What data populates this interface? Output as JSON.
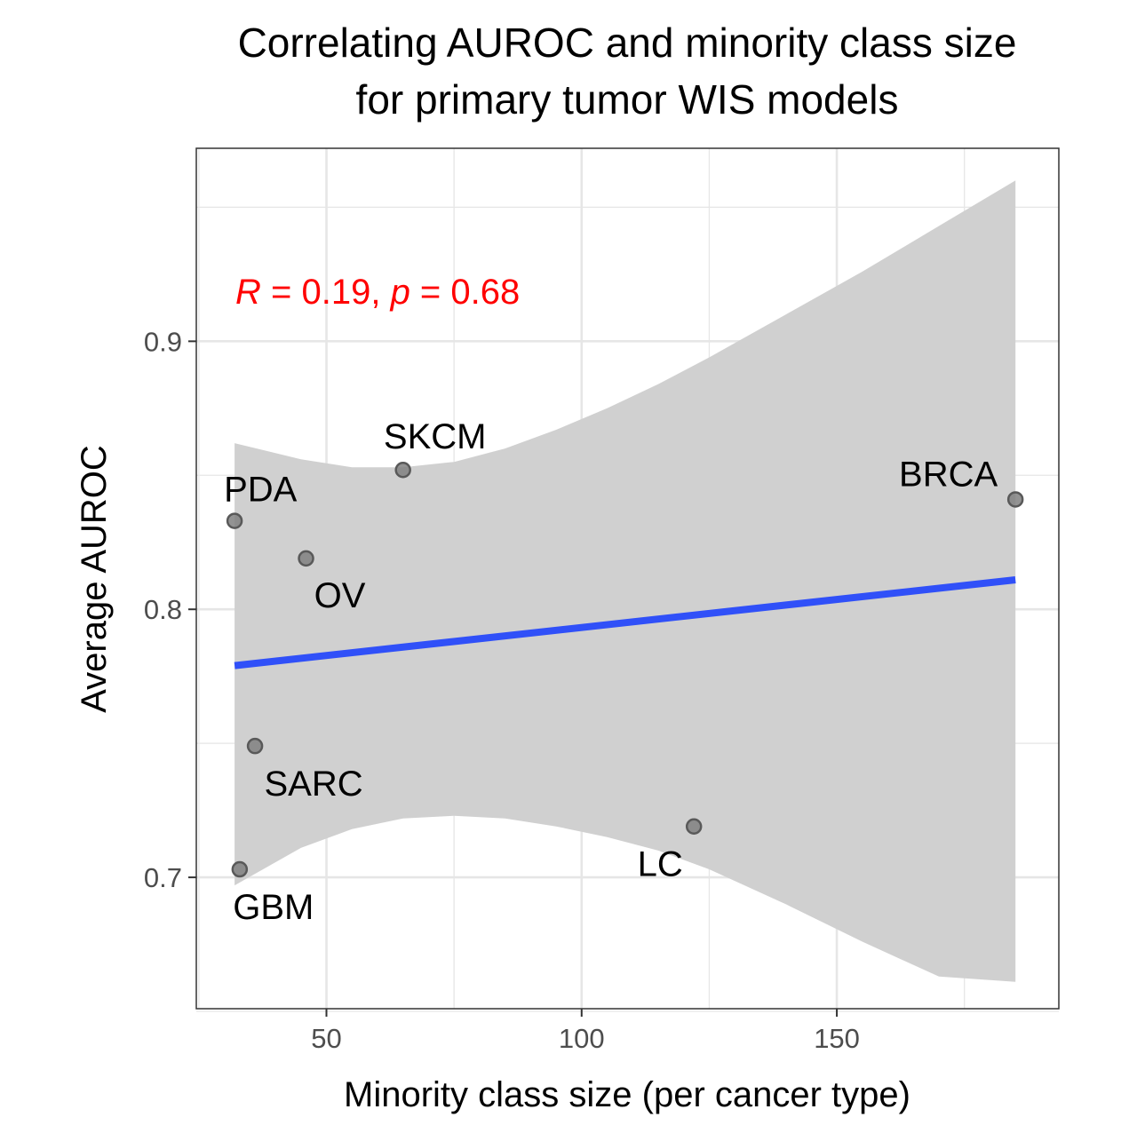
{
  "chart_data": {
    "type": "scatter",
    "title_lines": [
      "Correlating AUROC and minority class size",
      "for primary tumor WIS models"
    ],
    "xlabel": "Minority class size (per cancer type)",
    "ylabel": "Average AUROC",
    "xlim": [
      24.5,
      193.5
    ],
    "ylim": [
      0.651,
      0.972
    ],
    "x_ticks": [
      50,
      100,
      150
    ],
    "x_tick_labels": [
      "50",
      "100",
      "150"
    ],
    "x_minor_ticks": [
      25,
      75,
      125,
      175
    ],
    "y_ticks": [
      0.7,
      0.8,
      0.9
    ],
    "y_tick_labels": [
      "0.7",
      "0.8",
      "0.9"
    ],
    "y_minor_ticks": [
      0.65,
      0.75,
      0.85,
      0.95
    ],
    "grid": true,
    "points": [
      {
        "label": "PDA",
        "x": 32,
        "y": 0.833
      },
      {
        "label": "SKCM",
        "x": 65,
        "y": 0.852
      },
      {
        "label": "BRCA",
        "x": 185,
        "y": 0.841
      },
      {
        "label": "OV",
        "x": 46,
        "y": 0.819
      },
      {
        "label": "SARC",
        "x": 36,
        "y": 0.749
      },
      {
        "label": "LC",
        "x": 122,
        "y": 0.719
      },
      {
        "label": "GBM",
        "x": 33,
        "y": 0.703
      }
    ],
    "regression": {
      "x": [
        32,
        185
      ],
      "y": [
        0.779,
        0.811
      ],
      "ci_x": [
        32,
        45,
        55,
        65,
        75,
        85,
        95,
        105,
        115,
        125,
        140,
        155,
        170,
        185
      ],
      "ci_upper": [
        0.862,
        0.856,
        0.853,
        0.853,
        0.855,
        0.86,
        0.867,
        0.875,
        0.884,
        0.894,
        0.91,
        0.926,
        0.943,
        0.96
      ],
      "ci_lower": [
        0.697,
        0.711,
        0.718,
        0.722,
        0.723,
        0.722,
        0.719,
        0.715,
        0.71,
        0.703,
        0.69,
        0.676,
        0.663,
        0.661
      ]
    },
    "annotation": {
      "r_symbol": "R",
      "r_text": " = 0.19, ",
      "p_symbol": "p",
      "p_text": " = 0.68"
    },
    "colors": {
      "point_fill": "#808080",
      "point_stroke": "#595959",
      "line": "#3050f8",
      "ribbon": "#d0d0d0",
      "annotation": "#ff0000",
      "grid": "#e6e6e6",
      "panel_border": "#333333"
    }
  }
}
